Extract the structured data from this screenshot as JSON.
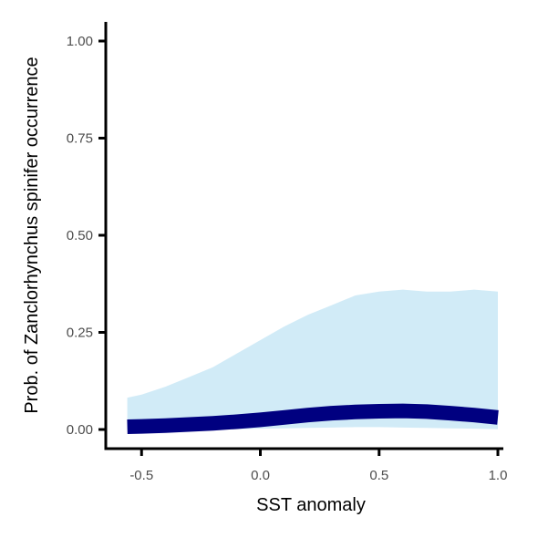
{
  "chart_data": {
    "type": "area",
    "xlabel": "SST anomaly",
    "ylabel": "Prob. of  Zanclorhynchus spinifer  occurrence",
    "xlim": [
      -0.65,
      1.08
    ],
    "ylim": [
      -0.06,
      1.06
    ],
    "x_ticks": [
      -0.5,
      0.0,
      0.5,
      1.0
    ],
    "x_tick_labels": [
      "-0.5",
      "0.0",
      "0.5",
      "1.0"
    ],
    "y_ticks": [
      0.0,
      0.25,
      0.5,
      0.75,
      1.0
    ],
    "y_tick_labels": [
      "0.00",
      "0.25",
      "0.50",
      "0.75",
      "1.00"
    ],
    "grid": false,
    "series": [
      {
        "x": [
          -0.56,
          -0.5,
          -0.4,
          -0.3,
          -0.2,
          -0.1,
          0.0,
          0.1,
          0.2,
          0.3,
          0.4,
          0.5,
          0.6,
          0.7,
          0.8,
          0.9,
          1.0
        ],
        "y": [
          0.007,
          0.008,
          0.01,
          0.013,
          0.016,
          0.02,
          0.025,
          0.031,
          0.037,
          0.042,
          0.045,
          0.047,
          0.048,
          0.046,
          0.042,
          0.037,
          0.031
        ],
        "lower": [
          0.0,
          0.0,
          0.0,
          0.0,
          0.0,
          0.001,
          0.002,
          0.003,
          0.004,
          0.005,
          0.006,
          0.006,
          0.005,
          0.004,
          0.003,
          0.002,
          0.001
        ],
        "upper": [
          0.082,
          0.09,
          0.11,
          0.135,
          0.16,
          0.195,
          0.23,
          0.265,
          0.295,
          0.32,
          0.345,
          0.355,
          0.36,
          0.355,
          0.355,
          0.36,
          0.355
        ]
      }
    ],
    "colors": {
      "ribbon": "#d1ebf7",
      "line": "#000080",
      "axis": "#000000",
      "tick_text": "#4d4d4d"
    }
  }
}
